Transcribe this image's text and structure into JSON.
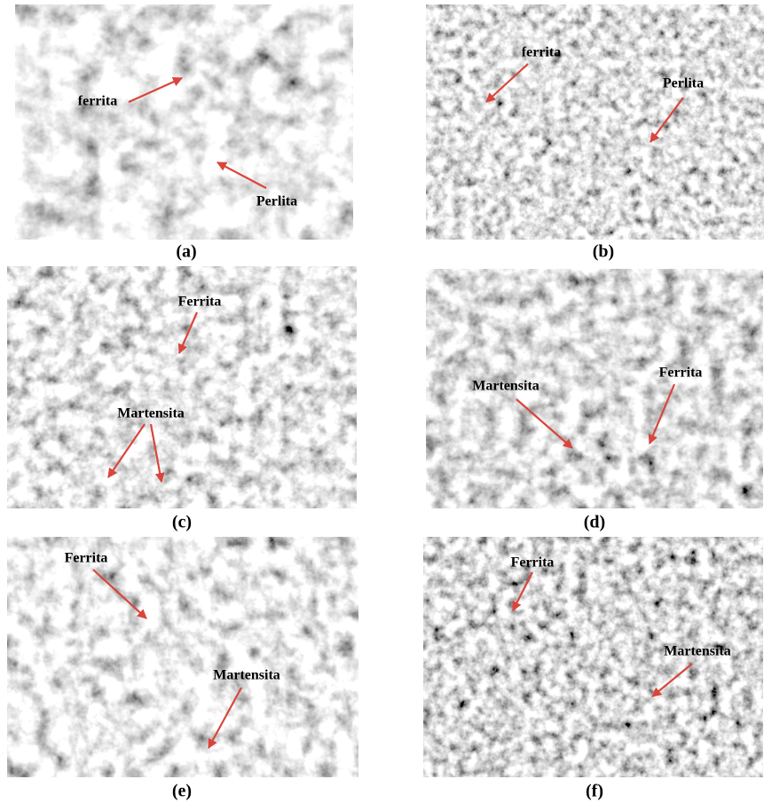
{
  "panels": [
    {
      "caption": "(a)",
      "annotations": [
        "ferrita",
        "Perlita"
      ]
    },
    {
      "caption": "(b)",
      "annotations": [
        "ferrita",
        "Perlita"
      ]
    },
    {
      "caption": "(c)",
      "annotations": [
        "Ferrita",
        "Martensita"
      ]
    },
    {
      "caption": "(d)",
      "annotations": [
        "Martensita",
        "Ferrita"
      ]
    },
    {
      "caption": "(e)",
      "annotations": [
        "Ferrita",
        "Martensita"
      ]
    },
    {
      "caption": "(f)",
      "annotations": [
        "Ferrita",
        "Martensita"
      ]
    }
  ]
}
